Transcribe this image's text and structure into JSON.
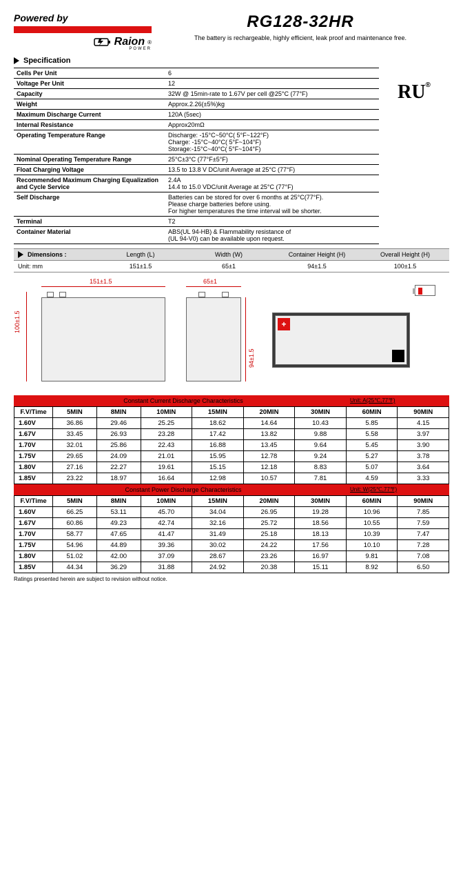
{
  "header": {
    "powered_by": "Powered by",
    "brand": "Raion",
    "brand_tm": "®",
    "brand_sub": "POWER",
    "model": "RG128-32HR",
    "subtitle": "The battery is rechargeable, highly efficient, leak proof and maintenance free."
  },
  "section_spec": "Specification",
  "ul_mark": "RU",
  "spec_rows": [
    {
      "label": "Cells Per Unit",
      "value": "6"
    },
    {
      "label": "Voltage Per Unit",
      "value": "12"
    },
    {
      "label": "Capacity",
      "value": "32W @ 15min-rate to 1.67V per cell @25°C (77°F)"
    },
    {
      "label": "Weight",
      "value": "Approx.2.26(±5%)kg"
    },
    {
      "label": "Maximum Discharge Current",
      "value": "120A (5sec)"
    },
    {
      "label": "Internal Resistance",
      "value": "Approx20mΩ"
    },
    {
      "label": "Operating Temperature Range",
      "value": "Discharge: -15°C~50°C( 5°F~122°F)\nCharge: -15°C~40°C( 5°F~104°F)\nStorage:-15°C~40°C( 5°F~104°F)"
    },
    {
      "label": "Nominal Operating Temperature Range",
      "value": "25°C±3°C (77°F±5°F)"
    },
    {
      "label": "Float Charging Voltage",
      "value": "13.5 to 13.8 V DC/unit Average at 25°C (77°F)"
    },
    {
      "label": "Recommended Maximum Charging Equalization and Cycle Service",
      "value": "2.4A\n14.4 to 15.0 VDC/unit Average at 25°C (77°F)"
    },
    {
      "label": "Self Discharge",
      "value": "Batteries can be stored for over 6 months at 25°C(77°F).\nPlease charge batteries before using.\nFor higher temperatures the time interval will be shorter."
    },
    {
      "label": "Terminal",
      "value": "T2"
    },
    {
      "label": "Container Material",
      "value": "ABS(UL 94-HB) & Flammability resistance of\n(UL 94-V0) can be available upon request."
    }
  ],
  "dimensions": {
    "title": "Dimensions :",
    "unit_label": "Unit: mm",
    "headers": [
      "Length (L)",
      "Width (W)",
      "Container Height (H)",
      "Overall Height (H)"
    ],
    "values": [
      "151±1.5",
      "65±1",
      "94±1.5",
      "100±1.5"
    ]
  },
  "drawing_labels": {
    "length": "151±1.5",
    "width": "65±1",
    "height": "100±1.5",
    "cheight": "94±1.5"
  },
  "discharge_current": {
    "title": "Constant Current Discharge Characteristics",
    "unit": "Unit: A(25℃,77℉)",
    "col_head": "F.V/Time",
    "columns": [
      "5MIN",
      "8MIN",
      "10MIN",
      "15MIN",
      "20MIN",
      "30MIN",
      "60MIN",
      "90MIN"
    ],
    "rows": [
      {
        "v": "1.60V",
        "d": [
          "36.86",
          "29.46",
          "25.25",
          "18.62",
          "14.64",
          "10.43",
          "5.85",
          "4.15"
        ]
      },
      {
        "v": "1.67V",
        "d": [
          "33.45",
          "26.93",
          "23.28",
          "17.42",
          "13.82",
          "9.88",
          "5.58",
          "3.97"
        ]
      },
      {
        "v": "1.70V",
        "d": [
          "32.01",
          "25.86",
          "22.43",
          "16.88",
          "13.45",
          "9.64",
          "5.45",
          "3.90"
        ]
      },
      {
        "v": "1.75V",
        "d": [
          "29.65",
          "24.09",
          "21.01",
          "15.95",
          "12.78",
          "9.24",
          "5.27",
          "3.78"
        ]
      },
      {
        "v": "1.80V",
        "d": [
          "27.16",
          "22.27",
          "19.61",
          "15.15",
          "12.18",
          "8.83",
          "5.07",
          "3.64"
        ]
      },
      {
        "v": "1.85V",
        "d": [
          "23.22",
          "18.97",
          "16.64",
          "12.98",
          "10.57",
          "7.81",
          "4.59",
          "3.33"
        ]
      }
    ]
  },
  "discharge_power": {
    "title": "Constant Power Discharge Characteristics",
    "unit": "Unit: W(25℃,77℉)",
    "col_head": "F.V/Time",
    "columns": [
      "5MIN",
      "8MIN",
      "10MIN",
      "15MIN",
      "20MIN",
      "30MIN",
      "60MIN",
      "90MIN"
    ],
    "rows": [
      {
        "v": "1.60V",
        "d": [
          "66.25",
          "53.11",
          "45.70",
          "34.04",
          "26.95",
          "19.28",
          "10.96",
          "7.85"
        ]
      },
      {
        "v": "1.67V",
        "d": [
          "60.86",
          "49.23",
          "42.74",
          "32.16",
          "25.72",
          "18.56",
          "10.55",
          "7.59"
        ]
      },
      {
        "v": "1.70V",
        "d": [
          "58.77",
          "47.65",
          "41.47",
          "31.49",
          "25.18",
          "18.13",
          "10.39",
          "7.47"
        ]
      },
      {
        "v": "1.75V",
        "d": [
          "54.96",
          "44.89",
          "39.36",
          "30.02",
          "24.22",
          "17.56",
          "10.10",
          "7.28"
        ]
      },
      {
        "v": "1.80V",
        "d": [
          "51.02",
          "42.00",
          "37.09",
          "28.67",
          "23.26",
          "16.97",
          "9.81",
          "7.08"
        ]
      },
      {
        "v": "1.85V",
        "d": [
          "44.34",
          "36.29",
          "31.88",
          "24.92",
          "20.38",
          "15.11",
          "8.92",
          "6.50"
        ]
      }
    ]
  },
  "footnote": "Ratings presented herein are subject to revision without notice."
}
